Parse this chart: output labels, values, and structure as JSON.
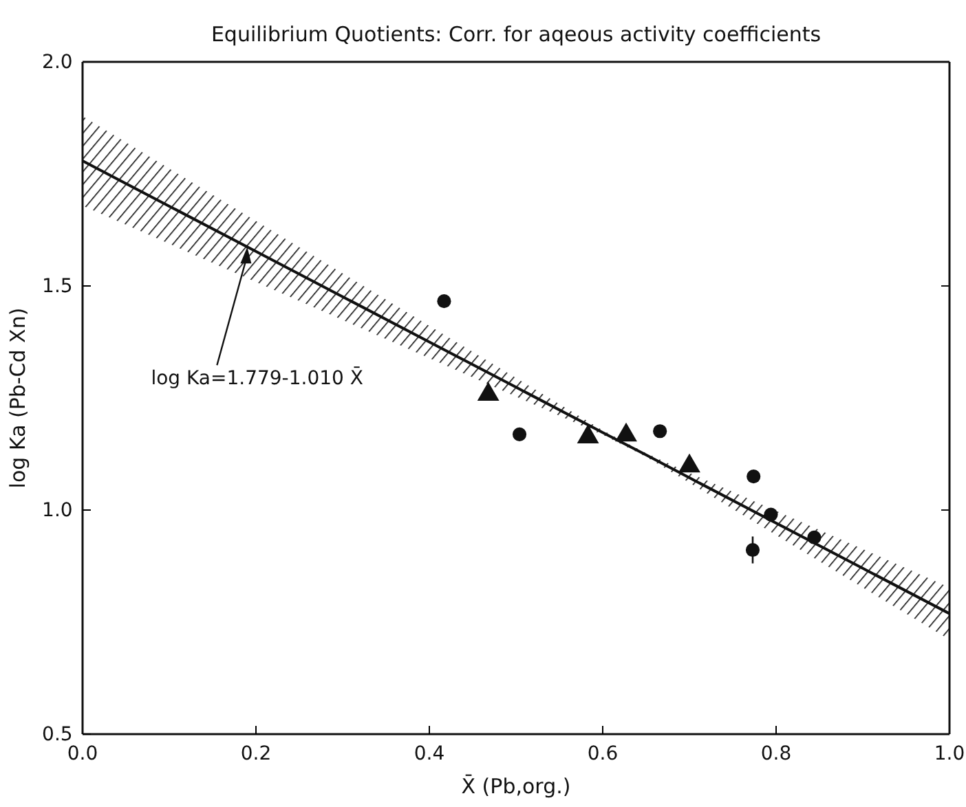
{
  "chart_data": {
    "type": "scatter",
    "title": "Equilibrium Quotients: Corr. for aqeous activity coefficients",
    "xlabel": "X̄ (Pb,org.)",
    "ylabel": "log Ka (Pb-Cd Xn)",
    "xlim": [
      0,
      1
    ],
    "ylim": [
      0.5,
      2.0
    ],
    "xticks": [
      {
        "value": 0,
        "label": "0.0"
      },
      {
        "value": 0.2,
        "label": "0.2"
      },
      {
        "value": 0.4,
        "label": "0.4"
      },
      {
        "value": 0.6,
        "label": "0.6"
      },
      {
        "value": 0.8,
        "label": "0.8"
      },
      {
        "value": 1,
        "label": "1.0"
      }
    ],
    "yticks": [
      {
        "value": 0.5,
        "label": "0.5"
      },
      {
        "value": 1,
        "label": "1.0"
      },
      {
        "value": 1.5,
        "label": "1.5"
      },
      {
        "value": 2,
        "label": "2.0"
      }
    ],
    "grid": false,
    "series": [
      {
        "type": "line",
        "color": "#111111",
        "marker": "none",
        "line_style": "solid",
        "x": [
          0,
          0.2,
          0.4,
          0.5,
          0.6,
          0.65,
          0.7,
          0.8,
          0.9,
          1.0
        ],
        "values": [
          1.779,
          1.577,
          1.375,
          1.274,
          1.173,
          1.123,
          1.072,
          0.971,
          0.87,
          0.769
        ],
        "lower": [
          1.679,
          1.509,
          1.339,
          1.253,
          1.168,
          1.119,
          1.061,
          0.944,
          0.827,
          0.711
        ],
        "upper": [
          1.879,
          1.645,
          1.411,
          1.295,
          1.178,
          1.127,
          1.083,
          0.998,
          0.913,
          0.827
        ]
      },
      {
        "color": "#111111",
        "marker": "circle",
        "x": [
          0.417,
          0.504,
          0.666,
          0.774,
          0.794,
          0.773,
          0.844
        ],
        "values": [
          1.466,
          1.169,
          1.176,
          1.075,
          0.99,
          0.911,
          0.939
        ],
        "errors": [
          null,
          null,
          null,
          null,
          null,
          0.03,
          null
        ]
      },
      {
        "color": "#111111",
        "marker": "triangle",
        "x": [
          0.468,
          0.583,
          0.627,
          0.7
        ],
        "values": [
          1.258,
          1.163,
          1.167,
          1.098
        ]
      }
    ],
    "annotations": [
      {
        "text": "log Ka=1.779-1.010 X̄",
        "x": 0.19,
        "y": 1.587
      }
    ]
  }
}
